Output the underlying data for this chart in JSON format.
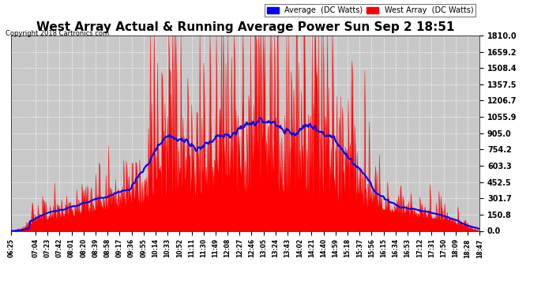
{
  "title": "West Array Actual & Running Average Power Sun Sep 2 18:51",
  "copyright": "Copyright 2018 Cartronics.com",
  "legend_labels": [
    "Average  (DC Watts)",
    "West Array  (DC Watts)"
  ],
  "legend_colors": [
    "blue",
    "red"
  ],
  "ymin": 0.0,
  "ymax": 1810.0,
  "yticks": [
    0.0,
    150.8,
    301.7,
    452.5,
    603.3,
    754.2,
    905.0,
    1055.9,
    1206.7,
    1357.5,
    1508.4,
    1659.2,
    1810.0
  ],
  "bg_color": "#ffffff",
  "plot_bg_color": "#c8c8c8",
  "grid_color": "#ffffff",
  "fill_color": "#ff0000",
  "avg_line_color": "#0000ff",
  "title_color": "#000000",
  "xtick_labels": [
    "06:25",
    "07:04",
    "07:23",
    "07:42",
    "08:01",
    "08:20",
    "08:39",
    "08:58",
    "09:17",
    "09:36",
    "09:55",
    "10:14",
    "10:33",
    "10:52",
    "11:11",
    "11:30",
    "11:49",
    "12:08",
    "12:27",
    "12:46",
    "13:05",
    "13:24",
    "13:43",
    "14:02",
    "14:21",
    "14:40",
    "14:59",
    "15:18",
    "15:37",
    "15:56",
    "16:15",
    "16:34",
    "16:53",
    "17:12",
    "17:31",
    "17:50",
    "18:09",
    "18:28",
    "18:47"
  ]
}
